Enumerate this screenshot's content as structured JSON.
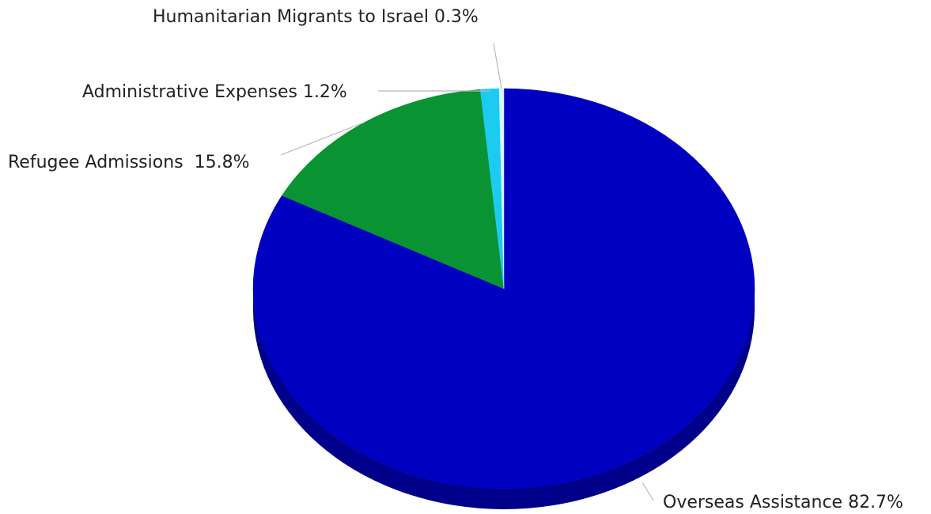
{
  "chart_data": {
    "type": "pie",
    "style": "3d",
    "title": "",
    "slices": [
      {
        "label": "Overseas Assistance",
        "value": 82.7,
        "display": "Overseas Assistance 82.7%",
        "color": "#0000c0",
        "side_color": "#00008a"
      },
      {
        "label": "Refugee Admissions",
        "value": 15.8,
        "display": "Refugee Admissions  15.8%",
        "color": "#0a9332",
        "side_color": "#066b24"
      },
      {
        "label": "Administrative Expenses",
        "value": 1.2,
        "display": "Administrative Expenses 1.2%",
        "color": "#1ecbf0",
        "side_color": "#12a0c0"
      },
      {
        "label": "Humanitarian Migrants to Israel",
        "value": 0.3,
        "display": "Humanitarian Migrants to Israel 0.3%",
        "color": "#d8f6fc",
        "side_color": "#a9d9e4"
      }
    ],
    "legend": "none",
    "unit": "%"
  }
}
